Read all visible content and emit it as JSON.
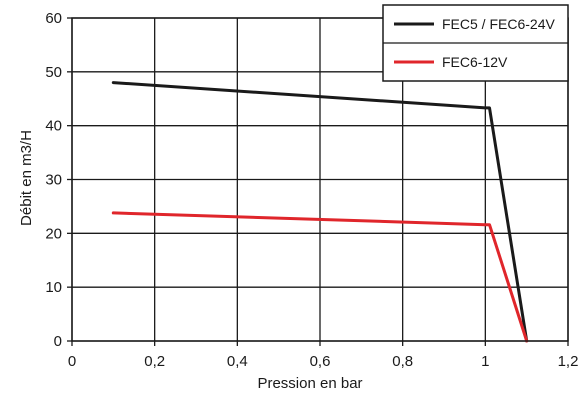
{
  "chart_data": {
    "type": "line",
    "title": "",
    "xlabel": "Pression en bar",
    "ylabel": "Débit en m3/H",
    "xlim": [
      0,
      1.2
    ],
    "ylim": [
      0,
      60
    ],
    "x_ticks": [
      "0",
      "0,2",
      "0,4",
      "0,6",
      "0,8",
      "1",
      "1,2"
    ],
    "y_ticks": [
      "0",
      "10",
      "20",
      "30",
      "40",
      "50",
      "60"
    ],
    "grid": true,
    "legend_position": "top-right",
    "series": [
      {
        "name": "FEC5 / FEC6-24V",
        "color": "#1a1a1a",
        "points": [
          [
            0.1,
            48
          ],
          [
            1.0,
            43.3
          ],
          [
            1.01,
            43.3
          ],
          [
            1.1,
            0
          ]
        ]
      },
      {
        "name": "FEC6-12V",
        "color": "#e0262b",
        "points": [
          [
            0.1,
            23.8
          ],
          [
            1.0,
            21.6
          ],
          [
            1.01,
            21.6
          ],
          [
            1.1,
            0
          ]
        ]
      }
    ]
  }
}
